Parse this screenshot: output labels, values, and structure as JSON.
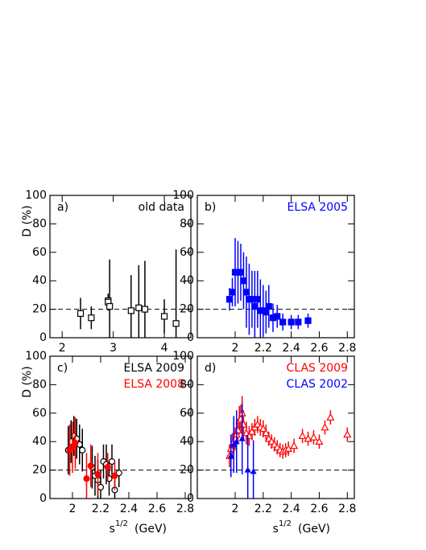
{
  "chart_data": [
    {
      "type": "scatter",
      "panel_label": "a)",
      "xlim": [
        1.76,
        4.52
      ],
      "ylim": [
        0,
        100
      ],
      "xticks": [
        2,
        3,
        4
      ],
      "yticks": [
        0,
        20,
        40,
        60,
        80,
        100
      ],
      "reference_line": 20,
      "y_label": "D (%)",
      "series": [
        {
          "name": "old data",
          "color": "#000000",
          "marker": "open-square",
          "x": [
            2.36,
            2.57,
            2.9,
            2.9,
            2.93,
            3.35,
            3.5,
            3.62,
            4.0,
            4.23
          ],
          "values": [
            17,
            14,
            26,
            25,
            22,
            19,
            21,
            20,
            15,
            10
          ],
          "errors": [
            11,
            8,
            4,
            6,
            33,
            25,
            30,
            34,
            12,
            52
          ]
        }
      ]
    },
    {
      "type": "scatter",
      "panel_label": "b)",
      "xlim": [
        1.73,
        2.85
      ],
      "ylim": [
        0,
        100
      ],
      "xticks": [
        2,
        2.2,
        2.4,
        2.6,
        2.8
      ],
      "yticks": [
        0,
        20,
        40,
        60,
        80,
        100
      ],
      "reference_line": 20,
      "series": [
        {
          "name": "ELSA 2005",
          "color": "#0000ff",
          "marker": "filled-square",
          "x": [
            1.96,
            1.98,
            2.0,
            2.02,
            2.04,
            2.06,
            2.08,
            2.1,
            2.12,
            2.14,
            2.16,
            2.18,
            2.2,
            2.22,
            2.24,
            2.27,
            2.3,
            2.34,
            2.4,
            2.45,
            2.52
          ],
          "values": [
            27,
            32,
            46,
            46,
            46,
            40,
            32,
            27,
            27,
            22,
            27,
            19,
            19,
            18,
            22,
            14,
            15,
            11,
            11,
            11,
            12
          ],
          "errors": [
            8,
            10,
            24,
            22,
            20,
            20,
            25,
            25,
            20,
            25,
            20,
            22,
            18,
            15,
            15,
            10,
            8,
            6,
            5,
            5,
            5
          ]
        }
      ]
    },
    {
      "type": "scatter",
      "panel_label": "c)",
      "xlim": [
        1.84,
        2.84
      ],
      "ylim": [
        0,
        100
      ],
      "xticks": [
        2,
        2.2,
        2.4,
        2.6,
        2.8
      ],
      "yticks": [
        0,
        20,
        40,
        60,
        80,
        100
      ],
      "reference_line": 20,
      "y_label": "D (%)",
      "x_label_base": "s",
      "x_label_sup": "1/2",
      "x_label_unit": "(GeV)",
      "series": [
        {
          "name": "ELSA 2009",
          "color": "#000000",
          "marker": "open-circle",
          "x": [
            1.97,
            1.99,
            2.01,
            2.03,
            2.05,
            2.07,
            2.14,
            2.16,
            2.18,
            2.2,
            2.22,
            2.24,
            2.26,
            2.28,
            2.3,
            2.33
          ],
          "values": [
            34,
            40,
            44,
            42,
            38,
            34,
            22,
            16,
            13,
            8,
            26,
            24,
            14,
            26,
            6,
            18
          ],
          "errors": [
            17,
            15,
            14,
            14,
            14,
            15,
            15,
            14,
            14,
            12,
            12,
            14,
            12,
            12,
            12,
            10
          ]
        },
        {
          "name": "ELSA 2008",
          "color": "#ff0000",
          "marker": "filled-circle",
          "x": [
            1.98,
            2.0,
            2.02,
            2.1,
            2.13,
            2.18,
            2.25,
            2.3
          ],
          "values": [
            34,
            36,
            39,
            14,
            23,
            17,
            22,
            16
          ],
          "errors": [
            18,
            18,
            18,
            18,
            15,
            15,
            10,
            10
          ]
        }
      ]
    },
    {
      "type": "scatter",
      "panel_label": "d)",
      "xlim": [
        1.73,
        2.85
      ],
      "ylim": [
        0,
        100
      ],
      "xticks": [
        2,
        2.2,
        2.4,
        2.6,
        2.8
      ],
      "yticks": [
        0,
        20,
        40,
        60,
        80,
        100
      ],
      "reference_line": 20,
      "x_label_base": "s",
      "x_label_sup": "1/2",
      "x_label_unit": "(GeV)",
      "series": [
        {
          "name": "CLAS 2009",
          "color": "#ff0000",
          "marker": "open-triangle",
          "x": [
            1.96,
            1.97,
            1.98,
            1.99,
            2.0,
            2.01,
            2.02,
            2.03,
            2.04,
            2.05,
            2.06,
            2.08,
            2.1,
            2.12,
            2.14,
            2.16,
            2.18,
            2.2,
            2.22,
            2.24,
            2.26,
            2.28,
            2.3,
            2.32,
            2.34,
            2.36,
            2.38,
            2.42,
            2.48,
            2.52,
            2.56,
            2.6,
            2.64,
            2.68,
            2.8
          ],
          "values": [
            30,
            35,
            38,
            40,
            42,
            45,
            48,
            55,
            56,
            60,
            52,
            46,
            44,
            47,
            50,
            52,
            50,
            49,
            46,
            42,
            40,
            38,
            36,
            34,
            33,
            34,
            35,
            37,
            44,
            42,
            43,
            40,
            50,
            57,
            45
          ],
          "errors": [
            8,
            8,
            8,
            8,
            8,
            8,
            8,
            10,
            10,
            12,
            10,
            8,
            7,
            6,
            6,
            6,
            6,
            6,
            6,
            5,
            5,
            5,
            5,
            5,
            5,
            5,
            5,
            5,
            5,
            5,
            5,
            5,
            5,
            5,
            5
          ]
        },
        {
          "name": "CLAS 2002",
          "color": "#0000ff",
          "marker": "filled-triangle",
          "x": [
            1.97,
            1.99,
            2.01,
            2.05,
            2.09,
            2.13
          ],
          "values": [
            30,
            38,
            40,
            42,
            20,
            19
          ],
          "errors": [
            15,
            20,
            22,
            25,
            25,
            22
          ]
        }
      ]
    }
  ]
}
